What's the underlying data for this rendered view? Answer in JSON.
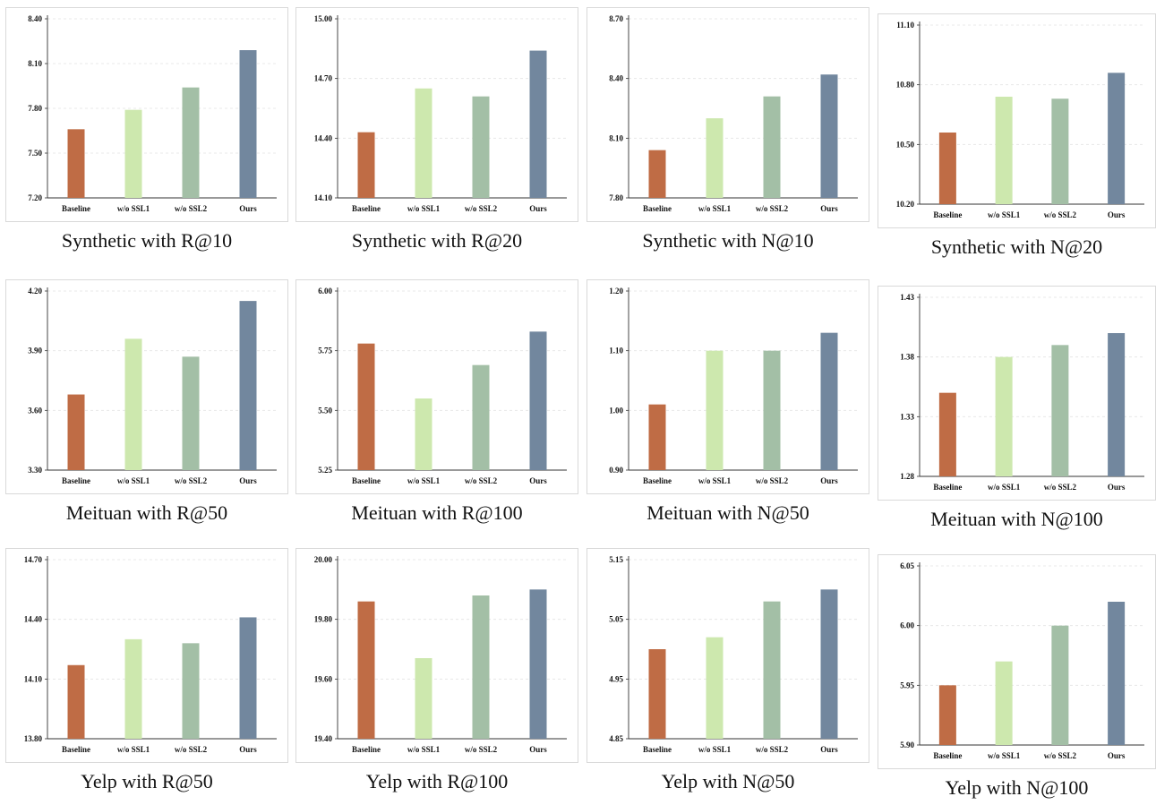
{
  "categories": [
    "Baseline",
    "w/o SSL1",
    "w/o SSL2",
    "Ours"
  ],
  "bar_colors": [
    "#bf6c45",
    "#cde8ae",
    "#a3bfa6",
    "#72879e"
  ],
  "chart_data": [
    {
      "type": "bar",
      "caption": "Synthetic with R@10",
      "categories": [
        "Baseline",
        "w/o SSL1",
        "w/o SSL2",
        "Ours"
      ],
      "values": [
        7.66,
        7.79,
        7.94,
        8.19
      ],
      "ylim": [
        7.2,
        8.4
      ],
      "yticks": [
        "7.20",
        "7.50",
        "7.80",
        "8.10",
        "8.40"
      ]
    },
    {
      "type": "bar",
      "caption": "Synthetic with R@20",
      "categories": [
        "Baseline",
        "w/o SSL1",
        "w/o SSL2",
        "Ours"
      ],
      "values": [
        14.43,
        14.65,
        14.61,
        14.84
      ],
      "ylim": [
        14.1,
        15.0
      ],
      "yticks": [
        "14.10",
        "14.40",
        "14.70",
        "15.00"
      ]
    },
    {
      "type": "bar",
      "caption": "Synthetic with N@10",
      "categories": [
        "Baseline",
        "w/o SSL1",
        "w/o SSL2",
        "Ours"
      ],
      "values": [
        8.04,
        8.2,
        8.31,
        8.42
      ],
      "ylim": [
        7.8,
        8.7
      ],
      "yticks": [
        "7.80",
        "8.10",
        "8.40",
        "8.70"
      ]
    },
    {
      "type": "bar",
      "caption": "Synthetic with N@20",
      "categories": [
        "Baseline",
        "w/o SSL1",
        "w/o SSL2",
        "Ours"
      ],
      "values": [
        10.56,
        10.74,
        10.73,
        10.86
      ],
      "ylim": [
        10.2,
        11.1
      ],
      "yticks": [
        "10.20",
        "10.50",
        "10.80",
        "11.10"
      ]
    },
    {
      "type": "bar",
      "caption": "Meituan with R@50",
      "categories": [
        "Baseline",
        "w/o SSL1",
        "w/o SSL2",
        "Ours"
      ],
      "values": [
        3.68,
        3.96,
        3.87,
        4.15
      ],
      "ylim": [
        3.3,
        4.2
      ],
      "yticks": [
        "3.30",
        "3.60",
        "3.90",
        "4.20"
      ]
    },
    {
      "type": "bar",
      "caption": "Meituan with R@100",
      "categories": [
        "Baseline",
        "w/o SSL1",
        "w/o SSL2",
        "Ours"
      ],
      "values": [
        5.78,
        5.55,
        5.69,
        5.83
      ],
      "ylim": [
        5.25,
        6.0
      ],
      "yticks": [
        "5.25",
        "5.50",
        "5.75",
        "6.00"
      ]
    },
    {
      "type": "bar",
      "caption": "Meituan with N@50",
      "categories": [
        "Baseline",
        "w/o SSL1",
        "w/o SSL2",
        "Ours"
      ],
      "values": [
        1.01,
        1.1,
        1.1,
        1.13
      ],
      "ylim": [
        0.9,
        1.2
      ],
      "yticks": [
        "0.90",
        "1.00",
        "1.10",
        "1.20"
      ]
    },
    {
      "type": "bar",
      "caption": "Meituan with N@100",
      "categories": [
        "Baseline",
        "w/o SSL1",
        "w/o SSL2",
        "Ours"
      ],
      "values": [
        1.35,
        1.38,
        1.39,
        1.4
      ],
      "ylim": [
        1.28,
        1.43
      ],
      "yticks": [
        "1.28",
        "1.33",
        "1.38",
        "1.43"
      ]
    },
    {
      "type": "bar",
      "caption": "Yelp with R@50",
      "categories": [
        "Baseline",
        "w/o SSL1",
        "w/o SSL2",
        "Ours"
      ],
      "values": [
        14.17,
        14.3,
        14.28,
        14.41
      ],
      "ylim": [
        13.8,
        14.7
      ],
      "yticks": [
        "13.80",
        "14.10",
        "14.40",
        "14.70"
      ]
    },
    {
      "type": "bar",
      "caption": "Yelp with R@100",
      "categories": [
        "Baseline",
        "w/o SSL1",
        "w/o SSL2",
        "Ours"
      ],
      "values": [
        19.86,
        19.67,
        19.88,
        19.9
      ],
      "ylim": [
        19.4,
        20.0
      ],
      "yticks": [
        "19.40",
        "19.60",
        "19.80",
        "20.00"
      ]
    },
    {
      "type": "bar",
      "caption": "Yelp with N@50",
      "categories": [
        "Baseline",
        "w/o SSL1",
        "w/o SSL2",
        "Ours"
      ],
      "values": [
        5.0,
        5.02,
        5.08,
        5.1
      ],
      "ylim": [
        4.85,
        5.15
      ],
      "yticks": [
        "4.85",
        "4.95",
        "5.05",
        "5.15"
      ]
    },
    {
      "type": "bar",
      "caption": "Yelp with N@100",
      "categories": [
        "Baseline",
        "w/o SSL1",
        "w/o SSL2",
        "Ours"
      ],
      "values": [
        5.95,
        5.97,
        6.0,
        6.02
      ],
      "ylim": [
        5.9,
        6.05
      ],
      "yticks": [
        "5.90",
        "5.95",
        "6.00",
        "6.05"
      ]
    }
  ]
}
